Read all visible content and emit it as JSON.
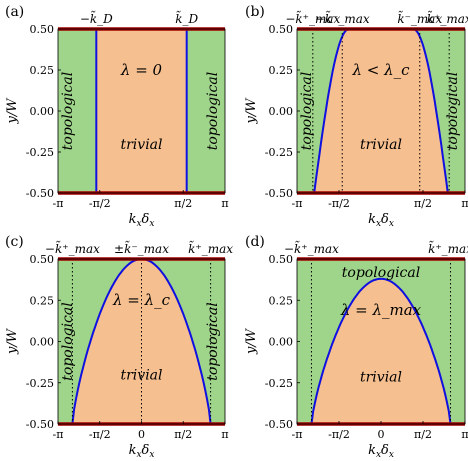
{
  "figure": {
    "colors": {
      "topological": "#9fd58a",
      "trivial": "#f6bf8f",
      "boundary": "#1010e0",
      "edge": "#a00000",
      "frame": "#000000"
    }
  },
  "chart_data": [
    {
      "type": "area",
      "panel_label": "(a)",
      "xlabel": "k_x δ_x",
      "ylabel": "y/W",
      "xlim": [
        -3.1416,
        3.1416
      ],
      "ylim": [
        -0.5,
        0.5
      ],
      "x_ticks": [
        "-π",
        "-π/2",
        "π/2",
        "π"
      ],
      "y_ticks": [
        "0.50",
        "0.25",
        "0.00",
        "-0.25",
        "-0.50"
      ],
      "top_labels": [
        "−k̃_D",
        "k̃_D"
      ],
      "region_labels": [
        "topological",
        "trivial",
        "topological"
      ],
      "annotation": "λ = 0",
      "curve": {
        "kind": "vertical",
        "x_left": -1.7,
        "x_right": 1.7
      },
      "dotted_x": []
    },
    {
      "type": "area",
      "panel_label": "(b)",
      "xlabel": "k_x δ_x",
      "ylabel": "y/W",
      "xlim": [
        -3.1416,
        3.1416
      ],
      "ylim": [
        -0.5,
        0.5
      ],
      "x_ticks": [
        "-π",
        "-π/2",
        "π/2",
        "π"
      ],
      "y_ticks": [
        "0.50",
        "0.25",
        "0.00",
        "-0.25",
        "-0.50"
      ],
      "top_labels": [
        "−k̃⁺_max",
        "−k̃⁻_max",
        "k̃⁻_max",
        "k̃⁺_max"
      ],
      "region_labels": [
        "topological",
        "trivial",
        "topological"
      ],
      "annotation": "λ < λ_c",
      "curve": {
        "kind": "arch",
        "x_max": 2.5,
        "y_top": 0.5,
        "flat_top": 1.2
      },
      "dotted_x": [
        -2.55,
        -1.45,
        1.45,
        2.55
      ]
    },
    {
      "type": "area",
      "panel_label": "(c)",
      "xlabel": "k_x δ_x",
      "ylabel": "y/W",
      "xlim": [
        -3.1416,
        3.1416
      ],
      "ylim": [
        -0.5,
        0.5
      ],
      "x_ticks": [
        "-π",
        "-π/2",
        "0",
        "π/2",
        "π"
      ],
      "y_ticks": [
        "0.50",
        "0.25",
        "0.00",
        "-0.25",
        "-0.50"
      ],
      "top_labels": [
        "−k̃⁺_max",
        "±k̃⁻_max",
        "k̃⁺_max"
      ],
      "region_labels": [
        "topological",
        "trivial",
        "topological"
      ],
      "annotation": "λ = λ_c",
      "curve": {
        "kind": "arch",
        "x_max": 2.6,
        "y_top": 0.5,
        "flat_top": 0
      },
      "dotted_x": [
        -2.6,
        0,
        2.6
      ]
    },
    {
      "type": "area",
      "panel_label": "(d)",
      "xlabel": "k_x δ_x",
      "ylabel": "y/W",
      "xlim": [
        -3.1416,
        3.1416
      ],
      "ylim": [
        -0.5,
        0.5
      ],
      "x_ticks": [
        "-π",
        "-π/2",
        "0",
        "π/2",
        "π"
      ],
      "y_ticks": [
        "0.50",
        "0.25",
        "0.00",
        "-0.25",
        "-0.50"
      ],
      "top_labels": [
        "−k̃⁺_max",
        "k̃⁺_max"
      ],
      "region_labels": [
        "topological",
        "trivial"
      ],
      "annotation": "λ = λ_max",
      "curve": {
        "kind": "arch",
        "x_max": 2.6,
        "y_top": 0.38,
        "flat_top": 0
      },
      "dotted_x": [
        -2.6,
        2.6
      ]
    }
  ]
}
